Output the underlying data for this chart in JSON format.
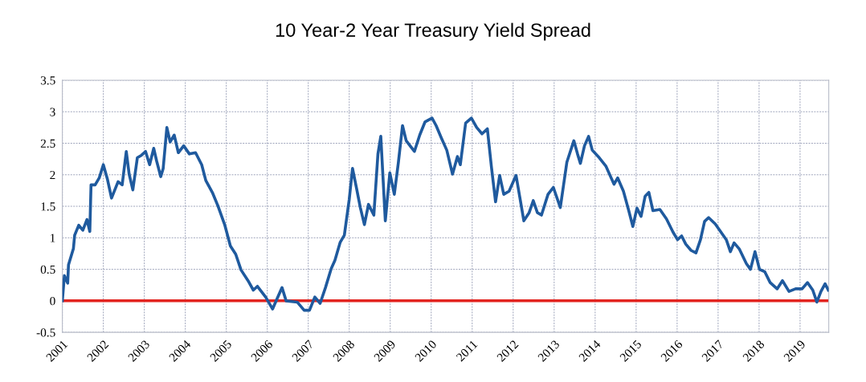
{
  "chart_data": {
    "type": "line",
    "title": "10 Year-2 Year Treasury Yield Spread",
    "xlim": [
      2001,
      2019.7
    ],
    "xticks": [
      2001,
      2002,
      2003,
      2004,
      2005,
      2006,
      2007,
      2008,
      2009,
      2010,
      2011,
      2012,
      2013,
      2014,
      2015,
      2016,
      2017,
      2018,
      2019
    ],
    "ylim": [
      -0.5,
      3.5
    ],
    "yticks": [
      -0.5,
      0,
      0.5,
      1,
      1.5,
      2,
      2.5,
      3,
      3.5
    ],
    "grid": true,
    "marker": "none",
    "line_style": "solid",
    "ref_lines": [
      {
        "axis": "y",
        "value": 0,
        "label": null,
        "color": "#e3241f"
      }
    ],
    "series": [
      {
        "color": "#1f5a9e",
        "x": [
          2001.0,
          2001.05,
          2001.13,
          2001.15,
          2001.27,
          2001.3,
          2001.4,
          2001.5,
          2001.6,
          2001.67,
          2001.7,
          2001.8,
          2001.9,
          2002.0,
          2002.1,
          2002.2,
          2002.36,
          2002.46,
          2002.56,
          2002.63,
          2002.72,
          2002.83,
          2002.93,
          2003.03,
          2003.13,
          2003.23,
          2003.3,
          2003.4,
          2003.46,
          2003.55,
          2003.63,
          2003.73,
          2003.83,
          2003.96,
          2004.1,
          2004.25,
          2004.4,
          2004.5,
          2004.66,
          2004.8,
          2004.96,
          2005.1,
          2005.23,
          2005.36,
          2005.53,
          2005.66,
          2005.76,
          2005.96,
          2006.13,
          2006.23,
          2006.36,
          2006.46,
          2006.73,
          2006.9,
          2007.03,
          2007.16,
          2007.29,
          2007.42,
          2007.56,
          2007.65,
          2007.78,
          2007.88,
          2008.0,
          2008.08,
          2008.18,
          2008.27,
          2008.37,
          2008.47,
          2008.6,
          2008.7,
          2008.77,
          2008.88,
          2008.99,
          2009.1,
          2009.2,
          2009.3,
          2009.39,
          2009.59,
          2009.72,
          2009.85,
          2010.02,
          2010.12,
          2010.25,
          2010.38,
          2010.52,
          2010.64,
          2010.71,
          2010.84,
          2010.98,
          2011.11,
          2011.24,
          2011.37,
          2011.47,
          2011.57,
          2011.67,
          2011.77,
          2011.9,
          2012.07,
          2012.16,
          2012.26,
          2012.39,
          2012.49,
          2012.59,
          2012.69,
          2012.85,
          2012.98,
          2013.15,
          2013.31,
          2013.48,
          2013.57,
          2013.64,
          2013.74,
          2013.84,
          2013.93,
          2014.1,
          2014.26,
          2014.46,
          2014.55,
          2014.69,
          2014.82,
          2014.92,
          2015.02,
          2015.12,
          2015.22,
          2015.31,
          2015.41,
          2015.58,
          2015.74,
          2015.9,
          2016.01,
          2016.11,
          2016.21,
          2016.34,
          2016.46,
          2016.57,
          2016.67,
          2016.77,
          2016.93,
          2017.07,
          2017.2,
          2017.3,
          2017.39,
          2017.52,
          2017.69,
          2017.79,
          2017.9,
          2018.01,
          2018.14,
          2018.27,
          2018.44,
          2018.57,
          2018.73,
          2018.89,
          2019.05,
          2019.18,
          2019.31,
          2019.41,
          2019.51,
          2019.61,
          2019.69
        ],
        "values": [
          0.0,
          0.4,
          0.28,
          0.57,
          0.83,
          1.04,
          1.2,
          1.12,
          1.29,
          1.1,
          1.84,
          1.84,
          1.95,
          2.16,
          1.93,
          1.63,
          1.89,
          1.84,
          2.37,
          2.01,
          1.76,
          2.27,
          2.31,
          2.37,
          2.16,
          2.42,
          2.22,
          1.97,
          2.1,
          2.75,
          2.52,
          2.63,
          2.35,
          2.46,
          2.33,
          2.35,
          2.16,
          1.91,
          1.72,
          1.5,
          1.21,
          0.87,
          0.74,
          0.49,
          0.32,
          0.17,
          0.23,
          0.06,
          -0.13,
          0.02,
          0.21,
          0.0,
          -0.02,
          -0.15,
          -0.15,
          0.06,
          -0.04,
          0.21,
          0.51,
          0.64,
          0.93,
          1.04,
          1.61,
          2.1,
          1.78,
          1.48,
          1.21,
          1.53,
          1.36,
          2.33,
          2.61,
          1.27,
          2.03,
          1.69,
          2.2,
          2.78,
          2.54,
          2.37,
          2.63,
          2.84,
          2.9,
          2.78,
          2.58,
          2.39,
          2.01,
          2.29,
          2.16,
          2.82,
          2.9,
          2.75,
          2.65,
          2.73,
          2.12,
          1.57,
          1.99,
          1.69,
          1.74,
          1.99,
          1.65,
          1.27,
          1.4,
          1.59,
          1.4,
          1.36,
          1.69,
          1.8,
          1.48,
          2.2,
          2.54,
          2.33,
          2.18,
          2.46,
          2.61,
          2.39,
          2.27,
          2.14,
          1.85,
          1.95,
          1.74,
          1.43,
          1.18,
          1.47,
          1.34,
          1.66,
          1.72,
          1.43,
          1.45,
          1.3,
          1.09,
          0.97,
          1.03,
          0.9,
          0.8,
          0.76,
          0.97,
          1.26,
          1.32,
          1.22,
          1.09,
          0.97,
          0.78,
          0.92,
          0.82,
          0.59,
          0.5,
          0.78,
          0.5,
          0.46,
          0.29,
          0.19,
          0.32,
          0.15,
          0.19,
          0.19,
          0.29,
          0.17,
          -0.02,
          0.15,
          0.27,
          0.17
        ]
      }
    ]
  }
}
